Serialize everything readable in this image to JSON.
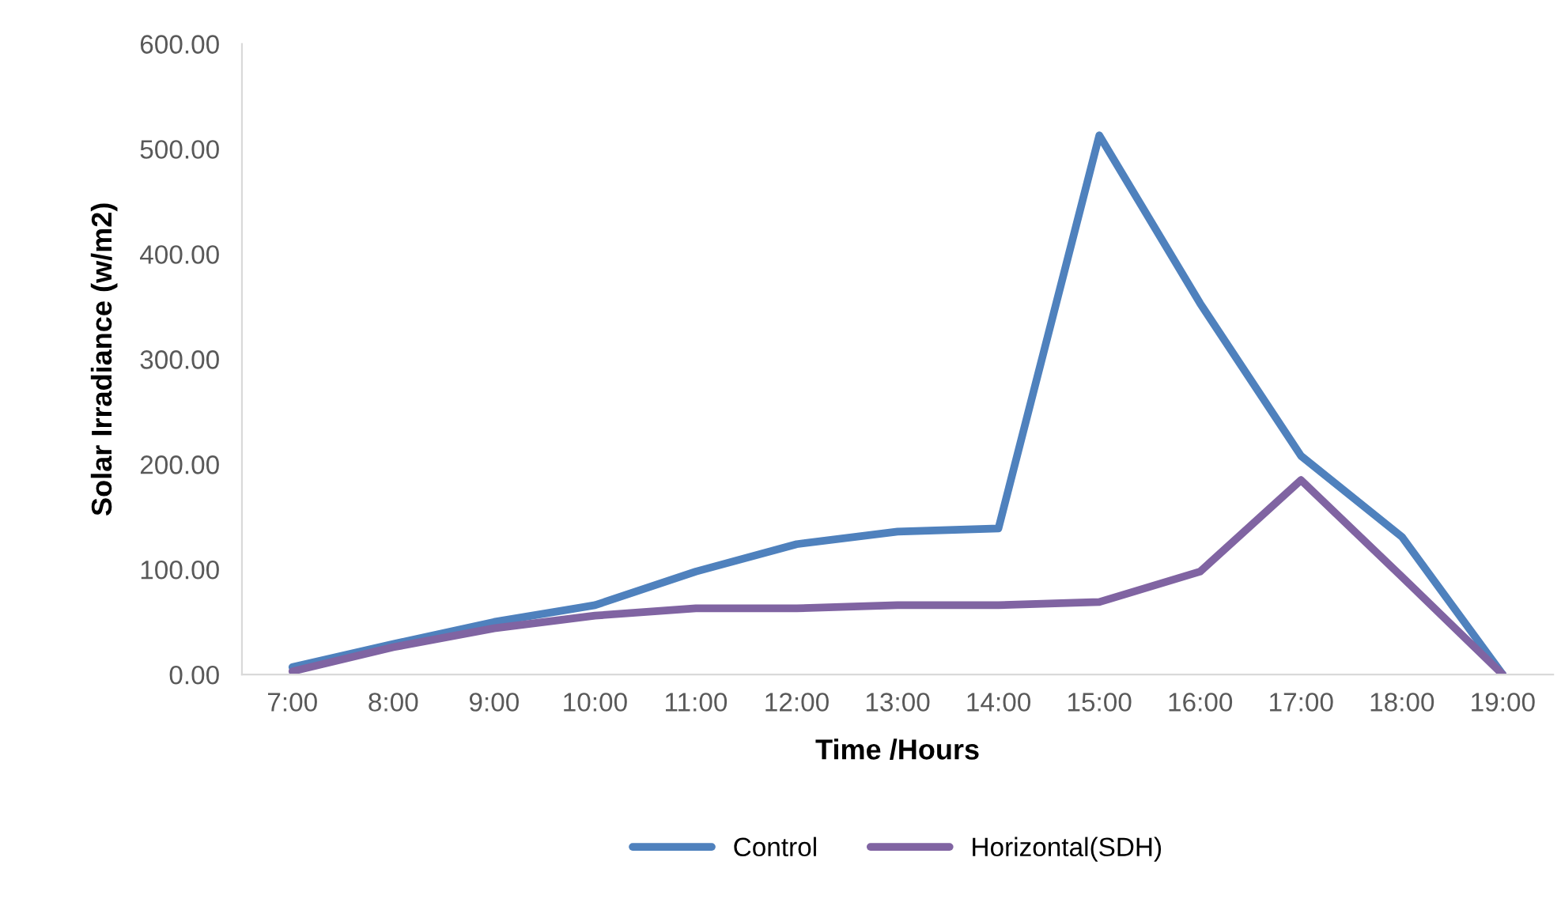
{
  "chart_data": {
    "type": "line",
    "xlabel": "Time /Hours",
    "ylabel": "Solar Irradiance (w/m2)",
    "categories": [
      "7:00",
      "8:00",
      "9:00",
      "10:00",
      "11:00",
      "12:00",
      "13:00",
      "14:00",
      "15:00",
      "16:00",
      "17:00",
      "18:00",
      "19:00"
    ],
    "series": [
      {
        "name": "Control",
        "color": "#4f81bd",
        "values": [
          7,
          29,
          50,
          66,
          98,
          124,
          136,
          139,
          513,
          353,
          208,
          131,
          0
        ]
      },
      {
        "name": "Horizontal(SDH)",
        "color": "#8064a2",
        "values": [
          3,
          26,
          44,
          56,
          63,
          63,
          66,
          66,
          69,
          98,
          185,
          93,
          0
        ]
      }
    ],
    "ylim": [
      0,
      600
    ],
    "yticks": [
      {
        "value": 0,
        "label": "0.00"
      },
      {
        "value": 100,
        "label": "100.00"
      },
      {
        "value": 200,
        "label": "200.00"
      },
      {
        "value": 300,
        "label": "300.00"
      },
      {
        "value": 400,
        "label": "400.00"
      },
      {
        "value": 500,
        "label": "500.00"
      },
      {
        "value": 600,
        "label": "600.00"
      }
    ],
    "grid": false,
    "legend": "bottom",
    "marker": "none",
    "line_style": "solid"
  }
}
